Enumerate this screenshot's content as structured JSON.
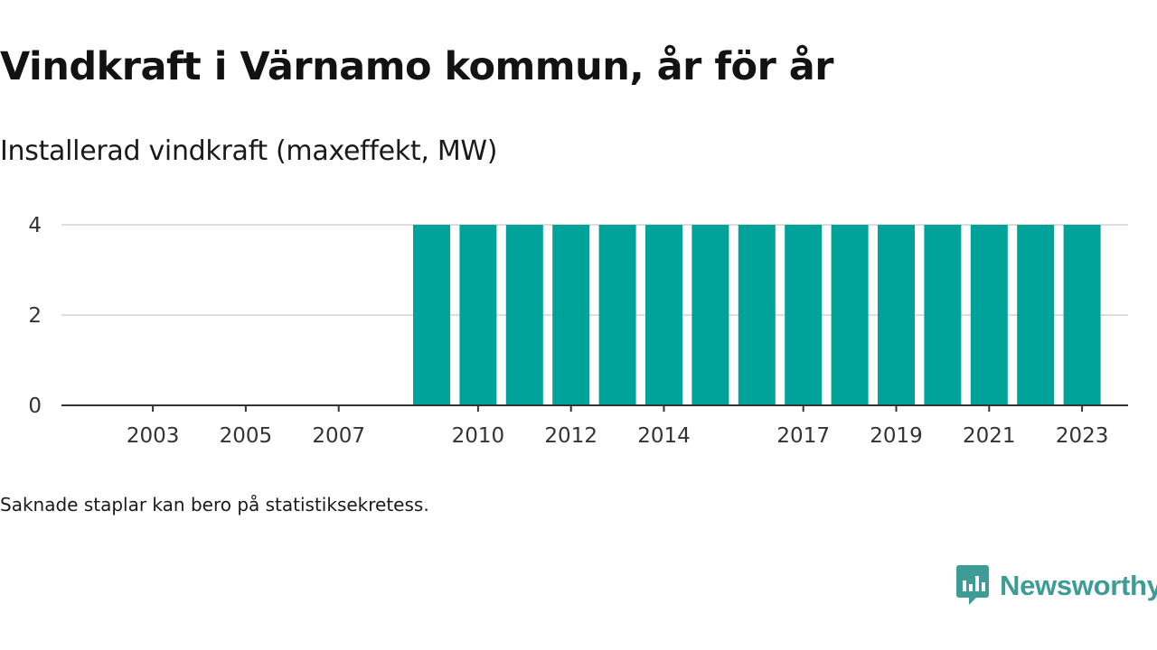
{
  "header": {
    "title": "Vindkraft i Värnamo kommun, år för år",
    "subtitle": "Installerad vindkraft (maxeffekt, MW)"
  },
  "footer": {
    "note": "Saknade staplar kan bero på statistiksekretess.",
    "brand": "Newsworthy"
  },
  "colors": {
    "bar": "#00a39a",
    "grid": "#dddddd",
    "axis": "#333333",
    "brand": "#3d9c95"
  },
  "chart_data": {
    "type": "bar",
    "title": "Vindkraft i Värnamo kommun, år för år",
    "subtitle": "Installerad vindkraft (maxeffekt, MW)",
    "xlabel": "",
    "ylabel": "",
    "categories": [
      "2002",
      "2003",
      "2004",
      "2005",
      "2006",
      "2007",
      "2008",
      "2009",
      "2010",
      "2011",
      "2012",
      "2013",
      "2014",
      "2015",
      "2016",
      "2017",
      "2018",
      "2019",
      "2020",
      "2021",
      "2022",
      "2023"
    ],
    "values": [
      null,
      null,
      null,
      null,
      null,
      null,
      null,
      4,
      4,
      4,
      4,
      4,
      4,
      4,
      4,
      4,
      4,
      4,
      4,
      4,
      4,
      4
    ],
    "x_tick_labels": [
      "2003",
      "2005",
      "2007",
      "2010",
      "2012",
      "2014",
      "2017",
      "2019",
      "2021",
      "2023"
    ],
    "y_ticks": [
      0,
      2,
      4
    ],
    "ylim": [
      0,
      4
    ],
    "grid": true,
    "legend": "none"
  }
}
